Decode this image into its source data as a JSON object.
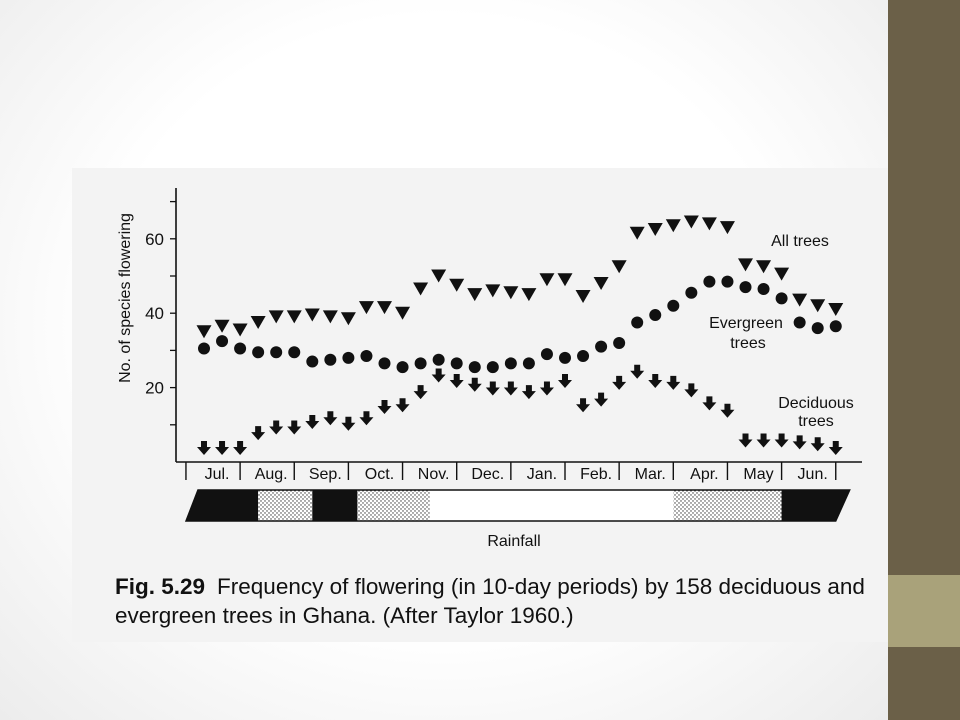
{
  "slide": {
    "colors": {
      "background": "#ffffff",
      "band": "#6b6048",
      "accent": "#a9a27a",
      "figure_panel": "#f3f3f3",
      "ink": "#111111"
    }
  },
  "figure": {
    "number": "Fig. 5.29",
    "caption": "Frequency of flowering (in 10-day periods) by 158 deciduous and evergreen trees in Ghana. (After Taylor 1960.)"
  },
  "chart_data": {
    "type": "scatter",
    "ylabel": "No. of species flowering",
    "ylim": [
      0,
      72
    ],
    "yticks": [
      20,
      40,
      60
    ],
    "months": [
      "Jul.",
      "Aug.",
      "Sep.",
      "Oct.",
      "Nov.",
      "Dec.",
      "Jan.",
      "Feb.",
      "Mar.",
      "Apr.",
      "May",
      "Jun."
    ],
    "x_unit": "10-day periods (3 per month)",
    "grid": false,
    "series": [
      {
        "name": "All trees",
        "marker": "triangle-down",
        "values": [
          35,
          36.5,
          35.5,
          37.5,
          39,
          39,
          39.5,
          39,
          38.5,
          41.5,
          41.5,
          40,
          46.5,
          50,
          47.5,
          45,
          46,
          45.5,
          45,
          49,
          49,
          44.5,
          48,
          52.5,
          61.5,
          62.5,
          63.5,
          64.5,
          64,
          63,
          53,
          52.5,
          50.5,
          43.5,
          42,
          41
        ]
      },
      {
        "name": "Evergreen trees",
        "marker": "circle",
        "values": [
          30.5,
          32.5,
          30.5,
          29.5,
          29.5,
          29.5,
          27,
          27.5,
          28,
          28.5,
          26.5,
          25.5,
          26.5,
          27.5,
          26.5,
          25.5,
          25.5,
          26.5,
          26.5,
          29,
          28,
          28.5,
          31,
          32,
          37.5,
          39.5,
          42,
          45.5,
          48.5,
          48.5,
          47,
          46.5,
          44,
          37.5,
          36,
          36.5
        ]
      },
      {
        "name": "Deciduous trees",
        "marker": "arrow-down",
        "values": [
          3.5,
          3.5,
          3.5,
          7.5,
          9,
          9,
          10.5,
          11.5,
          10,
          11.5,
          14.5,
          15,
          18.5,
          23,
          21.5,
          20.5,
          19.5,
          19.5,
          18.5,
          19.5,
          21.5,
          15,
          16.5,
          21,
          24,
          21.5,
          21,
          19,
          15.5,
          13.5,
          5.5,
          5.5,
          5.5,
          5,
          4.5,
          3.5
        ]
      }
    ],
    "series_labels": {
      "all": "All trees",
      "evergreen_1": "Evergreen",
      "evergreen_2": "trees",
      "deciduous_1": "Deciduous",
      "deciduous_2": "trees"
    },
    "rainfall": {
      "label": "Rainfall",
      "segments": [
        {
          "from_period": 0,
          "to_period": 4,
          "level": "wet"
        },
        {
          "from_period": 4,
          "to_period": 7,
          "level": "moderate"
        },
        {
          "from_period": 7,
          "to_period": 9.5,
          "level": "wet"
        },
        {
          "from_period": 9.5,
          "to_period": 13.5,
          "level": "moderate"
        },
        {
          "from_period": 13.5,
          "to_period": 27,
          "level": "dry"
        },
        {
          "from_period": 27,
          "to_period": 33,
          "level": "moderate"
        },
        {
          "from_period": 33,
          "to_period": 36,
          "level": "wet"
        }
      ]
    }
  }
}
